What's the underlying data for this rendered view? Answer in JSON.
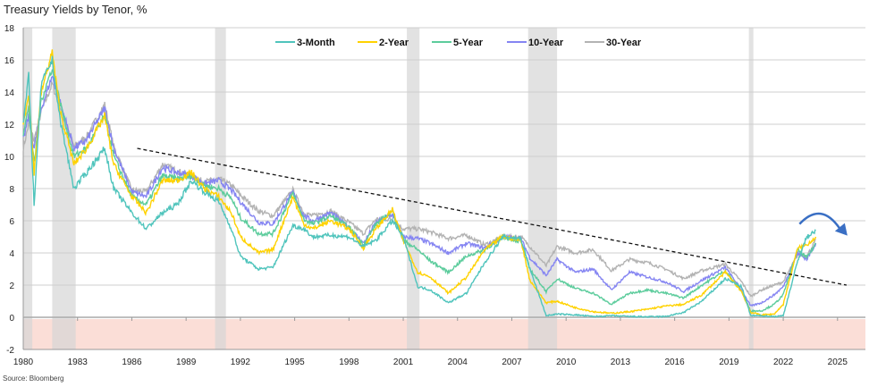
{
  "title": "Treasury Yields by Tenor, %",
  "source": "Source: Bloomberg",
  "chart_data": {
    "type": "line",
    "title": "Treasury Yields by Tenor, %",
    "xlabel": "",
    "ylabel": "",
    "xlim": [
      1980,
      2026.5
    ],
    "ylim": [
      -2,
      18
    ],
    "yticks": [
      -2,
      0,
      2,
      4,
      6,
      8,
      10,
      12,
      14,
      16,
      18
    ],
    "xticks": [
      1980,
      1983,
      1986,
      1989,
      1992,
      1995,
      1998,
      2001,
      2004,
      2007,
      2010,
      2013,
      2016,
      2019,
      2022,
      2025
    ],
    "grid": true,
    "legend_position": "top-center",
    "negative_zone": [
      -2,
      0
    ],
    "negative_zone_color": "#fbded7",
    "recessions": [
      [
        1980.0,
        1980.5
      ],
      [
        1981.6,
        1982.9
      ],
      [
        1990.6,
        1991.2
      ],
      [
        2001.2,
        2001.9
      ],
      [
        2007.9,
        2009.5
      ],
      [
        2020.1,
        2020.35
      ]
    ],
    "trendline": {
      "x": [
        1986.3,
        2025.5
      ],
      "y": [
        10.5,
        2.0
      ],
      "style": "dashed",
      "color": "#111111"
    },
    "annotation": {
      "type": "curved-arrow",
      "x": [
        2022.9,
        2025.3
      ],
      "y": [
        5.8,
        5.3
      ],
      "color": "#3a6fc4"
    },
    "x": [
      1980,
      1980.3,
      1980.6,
      1981,
      1981.6,
      1982,
      1982.8,
      1983.5,
      1984.5,
      1985,
      1986,
      1986.8,
      1987.7,
      1988.5,
      1989.3,
      1990,
      1990.8,
      1991.5,
      1992,
      1993,
      1993.8,
      1994.9,
      1995.5,
      1996,
      1997,
      1998,
      1998.8,
      1999.5,
      2000.4,
      2001,
      2001.8,
      2002.5,
      2003.5,
      2004.5,
      2005.5,
      2006.5,
      2007.5,
      2008,
      2008.9,
      2009.5,
      2010.5,
      2011.5,
      2012.5,
      2013.5,
      2014.5,
      2015.5,
      2016.5,
      2017.5,
      2018.8,
      2019.7,
      2020.2,
      2020.8,
      2021.5,
      2022.0,
      2022.8,
      2023.3,
      2023.8
    ],
    "series": [
      {
        "name": "3-Month",
        "color": "#4fc4bc",
        "values": [
          12,
          15,
          7,
          14.5,
          16,
          12.5,
          8,
          9,
          10.5,
          8,
          6.5,
          5.5,
          6.5,
          7,
          8.5,
          7.8,
          7.2,
          5.5,
          3.8,
          3.0,
          3.1,
          5.7,
          5.5,
          5.0,
          5.1,
          5.0,
          4.4,
          4.8,
          6.0,
          5.0,
          1.9,
          1.7,
          0.9,
          1.5,
          3.4,
          5.0,
          4.9,
          3.0,
          0.1,
          0.2,
          0.15,
          0.05,
          0.1,
          0.05,
          0.03,
          0.05,
          0.3,
          1.0,
          2.4,
          1.9,
          0.1,
          0.1,
          0.05,
          0.1,
          3.5,
          5.0,
          5.4
        ]
      },
      {
        "name": "2-Year",
        "color": "#ffd200",
        "values": [
          12,
          14,
          9,
          14,
          16.5,
          13,
          9.5,
          10.5,
          12.5,
          9.5,
          7.5,
          6.5,
          8.5,
          8.5,
          9,
          8,
          7.5,
          6.5,
          5,
          4,
          4.2,
          7.5,
          5.8,
          5.5,
          6.0,
          5.5,
          4.3,
          5.5,
          6.7,
          4.8,
          2.8,
          2.5,
          1.5,
          2.5,
          4.2,
          5.0,
          4.8,
          2.3,
          0.9,
          1.0,
          0.6,
          0.35,
          0.25,
          0.35,
          0.5,
          0.7,
          0.8,
          1.4,
          2.8,
          1.6,
          0.3,
          0.15,
          0.2,
          0.8,
          4.3,
          4.5,
          5.0
        ]
      },
      {
        "name": "5-Year",
        "color": "#5ccc9c",
        "values": [
          11.5,
          13,
          9.5,
          13.5,
          15.5,
          13.5,
          10,
          10.5,
          12.5,
          10,
          7.5,
          7,
          8.8,
          8.6,
          8.8,
          8.2,
          8,
          7.4,
          6.2,
          5.2,
          5.2,
          7.7,
          6.1,
          5.8,
          6.3,
          5.6,
          4.5,
          5.8,
          6.6,
          4.8,
          4.2,
          3.5,
          2.8,
          3.8,
          4.2,
          5.0,
          4.7,
          3.0,
          1.6,
          2.4,
          1.8,
          1.5,
          0.8,
          1.5,
          1.7,
          1.5,
          1.2,
          2.0,
          2.9,
          1.6,
          0.4,
          0.4,
          0.8,
          1.4,
          4.2,
          3.7,
          4.6
        ]
      },
      {
        "name": "10-Year",
        "color": "#8585f2",
        "values": [
          11,
          12.5,
          10.5,
          13,
          15,
          13.5,
          10.5,
          11,
          13,
          10.5,
          7.8,
          7.5,
          9.3,
          9,
          8.8,
          8.3,
          8.5,
          7.9,
          7.2,
          5.9,
          5.8,
          7.8,
          6.3,
          6.0,
          6.5,
          5.6,
          4.6,
          5.9,
          6.4,
          5.0,
          4.9,
          4.6,
          4.0,
          4.6,
          4.3,
          5.0,
          4.9,
          3.7,
          2.6,
          3.6,
          2.8,
          3.0,
          1.7,
          2.8,
          2.5,
          2.2,
          1.6,
          2.3,
          3.1,
          1.7,
          0.7,
          0.9,
          1.4,
          1.9,
          4.0,
          3.6,
          4.6
        ]
      },
      {
        "name": "30-Year",
        "color": "#b3b3b3",
        "values": [
          10.5,
          12,
          11,
          12.8,
          14.5,
          13.2,
          10.6,
          11.2,
          13.2,
          10.6,
          7.9,
          7.8,
          9.5,
          9.1,
          8.8,
          8.4,
          8.6,
          8.2,
          7.6,
          6.6,
          6.3,
          7.9,
          6.5,
          6.3,
          6.6,
          5.9,
          5.2,
          6.1,
          6.1,
          5.5,
          5.5,
          5.3,
          4.9,
          5.1,
          4.5,
          5.0,
          5.0,
          4.4,
          3.2,
          4.4,
          4.0,
          4.2,
          2.9,
          3.6,
          3.4,
          3.0,
          2.4,
          2.9,
          3.3,
          2.2,
          1.3,
          1.7,
          2.0,
          2.2,
          3.9,
          3.8,
          4.8
        ]
      }
    ]
  }
}
